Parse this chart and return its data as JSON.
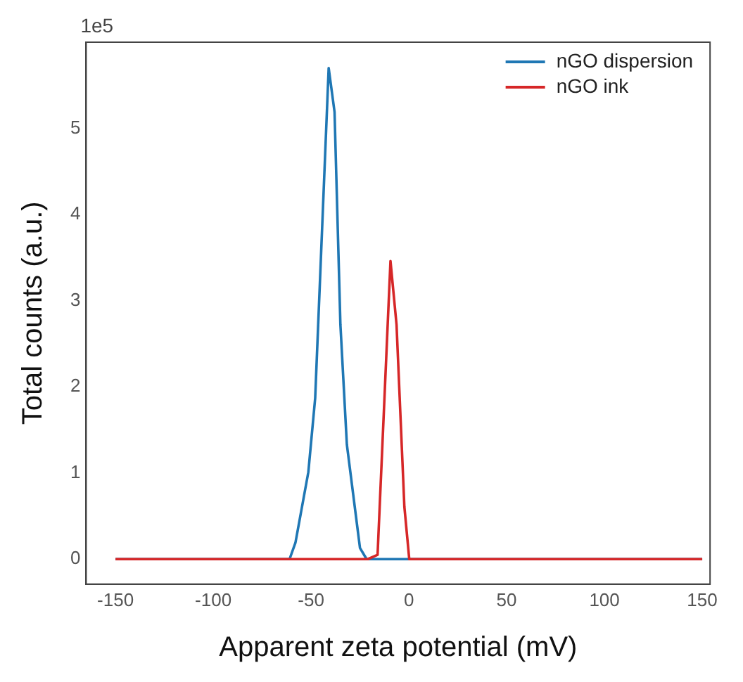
{
  "chart_data": {
    "type": "line",
    "xlabel": "Apparent zeta potential (mV)",
    "ylabel": "Total counts (a.u.)",
    "annotations": [
      "1e5"
    ],
    "xlim": [
      -165,
      154
    ],
    "ylim": [
      -0.29,
      6.0
    ],
    "xticks": [
      -150,
      -100,
      -50,
      0,
      50,
      100,
      150
    ],
    "yticks": [
      0,
      1,
      2,
      3,
      4,
      5
    ],
    "grid": false,
    "legend": "top right",
    "marker": "none",
    "line_style": "solid",
    "series": [
      {
        "name": "nGO dispersion",
        "color": "#1f77b4",
        "x": [
          -150,
          -61,
          -58,
          -51.4,
          -47.9,
          -41,
          -38,
          -35,
          -31.7,
          -25,
          -21.6,
          150
        ],
        "values": [
          0,
          0,
          0.19,
          1.01,
          1.87,
          5.7,
          5.19,
          2.72,
          1.33,
          0.13,
          0,
          0
        ]
      },
      {
        "name": "nGO ink",
        "color": "#d62728",
        "x": [
          -150,
          -21,
          -16,
          -9.4,
          -6.3,
          -2.3,
          0.2,
          150
        ],
        "values": [
          0,
          0,
          0.05,
          3.46,
          2.72,
          0.61,
          0,
          0
        ]
      }
    ]
  }
}
